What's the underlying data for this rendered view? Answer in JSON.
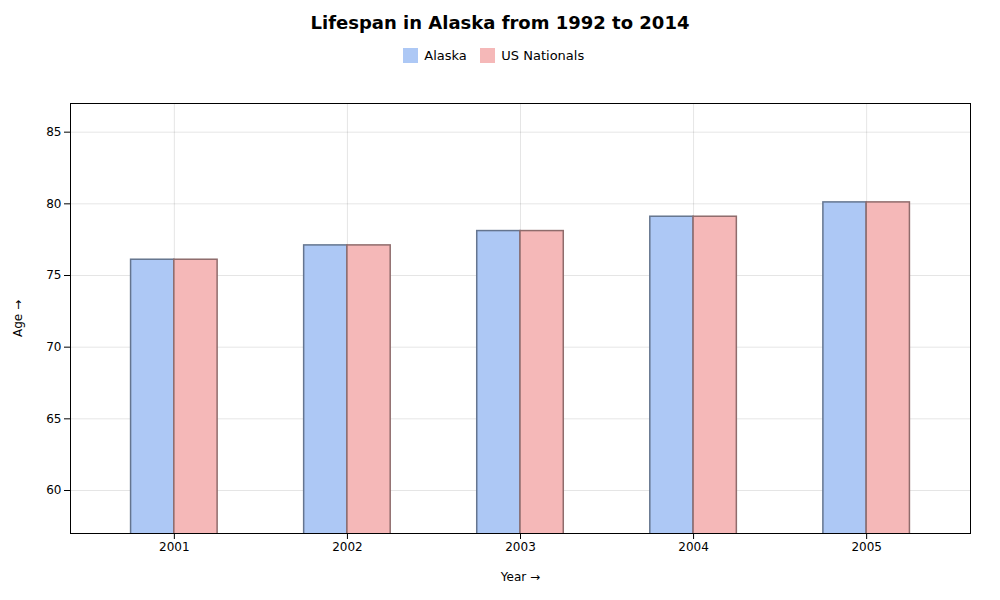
{
  "chart_data": {
    "type": "bar",
    "title": "Lifespan in Alaska from 1992 to 2014",
    "xlabel": "Year",
    "ylabel": "Age",
    "categories": [
      "2001",
      "2002",
      "2003",
      "2004",
      "2005"
    ],
    "series": [
      {
        "name": "Alaska",
        "color": "#adc8f5",
        "values": [
          76.1,
          77.1,
          78.1,
          79.1,
          80.1
        ]
      },
      {
        "name": "US Nationals",
        "color": "#f5b8b8",
        "values": [
          76.1,
          77.1,
          78.1,
          79.1,
          80.1
        ]
      }
    ],
    "ylim": [
      57,
      87
    ],
    "yticks": [
      60,
      65,
      70,
      75,
      80,
      85
    ],
    "grid": true,
    "legend": "top"
  }
}
